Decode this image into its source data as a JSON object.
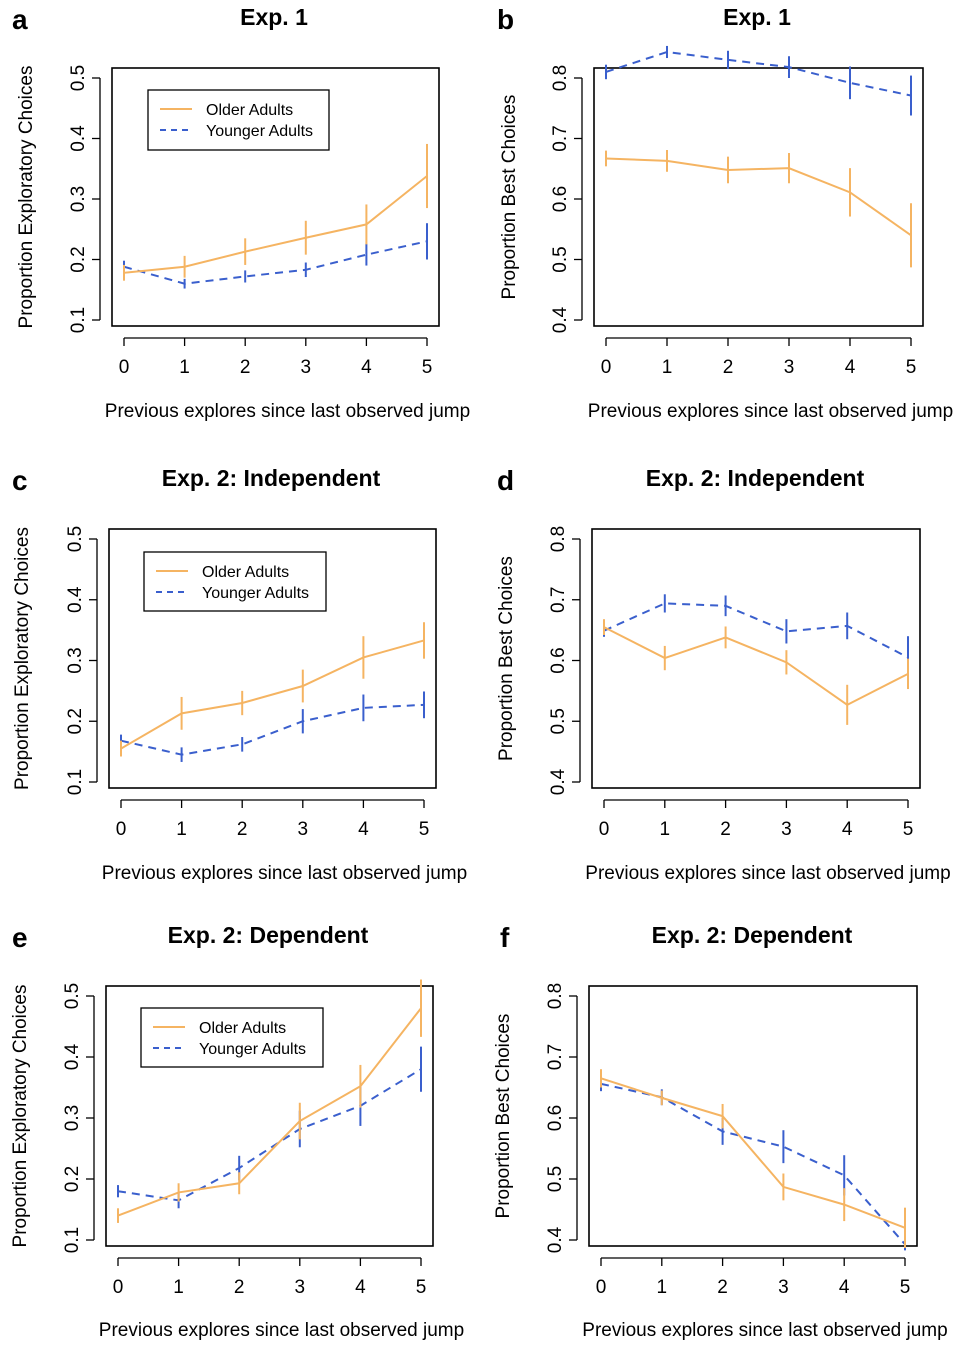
{
  "colors": {
    "older": "#f5b462",
    "younger": "#3a5fcd"
  },
  "chart_data": [
    {
      "id": "a",
      "letter": "a",
      "type": "line",
      "title": "Exp. 1",
      "xlabel": "Previous explores since last observed jump",
      "ylabel": "Proportion Exploratory Choices",
      "x": [
        0,
        1,
        2,
        3,
        4,
        5
      ],
      "ylim": [
        0.1,
        0.5
      ],
      "yticks": [
        "0.1",
        "0.2",
        "0.3",
        "0.4",
        "0.5"
      ],
      "legend": true,
      "legend_position": "top-left",
      "grid": false,
      "series": [
        {
          "name": "Older Adults",
          "style": "solid",
          "values": [
            0.178,
            0.188,
            0.213,
            0.236,
            0.258,
            0.338
          ],
          "errors": [
            0.013,
            0.018,
            0.022,
            0.028,
            0.033,
            0.053
          ]
        },
        {
          "name": "Younger Adults",
          "style": "dashed",
          "values": [
            0.188,
            0.16,
            0.172,
            0.183,
            0.208,
            0.23
          ],
          "errors": [
            0.01,
            0.008,
            0.01,
            0.012,
            0.018,
            0.03
          ]
        }
      ]
    },
    {
      "id": "b",
      "letter": "b",
      "type": "line",
      "title": "Exp. 1",
      "xlabel": "Previous explores since last observed jump",
      "ylabel": "Proportion Best Choices",
      "x": [
        0,
        1,
        2,
        3,
        4,
        5
      ],
      "ylim": [
        0.4,
        0.8
      ],
      "yticks": [
        "0.4",
        "0.5",
        "0.6",
        "0.7",
        "0.8"
      ],
      "legend": false,
      "grid": false,
      "series": [
        {
          "name": "Older Adults",
          "style": "solid",
          "values": [
            0.667,
            0.663,
            0.648,
            0.651,
            0.611,
            0.54
          ],
          "errors": [
            0.013,
            0.018,
            0.022,
            0.025,
            0.04,
            0.053
          ]
        },
        {
          "name": "Younger Adults",
          "style": "dashed",
          "values": [
            0.81,
            0.843,
            0.83,
            0.818,
            0.792,
            0.771
          ],
          "errors": [
            0.012,
            0.01,
            0.015,
            0.018,
            0.027,
            0.033
          ]
        }
      ]
    },
    {
      "id": "c",
      "letter": "c",
      "type": "line",
      "title": "Exp. 2: Independent",
      "xlabel": "Previous explores since last observed jump",
      "ylabel": "Proportion Exploratory Choices",
      "x": [
        0,
        1,
        2,
        3,
        4,
        5
      ],
      "ylim": [
        0.1,
        0.5
      ],
      "yticks": [
        "0.1",
        "0.2",
        "0.3",
        "0.4",
        "0.5"
      ],
      "legend": true,
      "legend_position": "top-left",
      "grid": false,
      "series": [
        {
          "name": "Older Adults",
          "style": "solid",
          "values": [
            0.155,
            0.213,
            0.23,
            0.258,
            0.305,
            0.333
          ],
          "errors": [
            0.013,
            0.027,
            0.02,
            0.027,
            0.035,
            0.03
          ]
        },
        {
          "name": "Younger Adults",
          "style": "dashed",
          "values": [
            0.168,
            0.145,
            0.162,
            0.2,
            0.222,
            0.227
          ],
          "errors": [
            0.01,
            0.012,
            0.012,
            0.02,
            0.022,
            0.022
          ]
        }
      ]
    },
    {
      "id": "d",
      "letter": "d",
      "type": "line",
      "title": "Exp. 2: Independent",
      "xlabel": "Previous explores since last observed jump",
      "ylabel": "Proportion Best Choices",
      "x": [
        0,
        1,
        2,
        3,
        4,
        5
      ],
      "ylim": [
        0.4,
        0.8
      ],
      "yticks": [
        "0.4",
        "0.5",
        "0.6",
        "0.7",
        "0.8"
      ],
      "legend": false,
      "grid": false,
      "series": [
        {
          "name": "Older Adults",
          "style": "solid",
          "values": [
            0.655,
            0.604,
            0.638,
            0.597,
            0.527,
            0.578
          ],
          "errors": [
            0.013,
            0.02,
            0.018,
            0.02,
            0.033,
            0.025
          ]
        },
        {
          "name": "Younger Adults",
          "style": "dashed",
          "values": [
            0.649,
            0.694,
            0.69,
            0.648,
            0.657,
            0.605
          ],
          "errors": [
            0.01,
            0.015,
            0.017,
            0.02,
            0.022,
            0.035
          ]
        }
      ]
    },
    {
      "id": "e",
      "letter": "e",
      "type": "line",
      "title": "Exp. 2: Dependent",
      "xlabel": "Previous explores since last observed jump",
      "ylabel": "Proportion Exploratory Choices",
      "x": [
        0,
        1,
        2,
        3,
        4,
        5
      ],
      "ylim": [
        0.1,
        0.5
      ],
      "yticks": [
        "0.1",
        "0.2",
        "0.3",
        "0.4",
        "0.5"
      ],
      "legend": true,
      "legend_position": "top-left",
      "grid": false,
      "series": [
        {
          "name": "Older Adults",
          "style": "solid",
          "values": [
            0.14,
            0.178,
            0.193,
            0.295,
            0.352,
            0.48
          ],
          "errors": [
            0.012,
            0.015,
            0.018,
            0.03,
            0.035,
            0.047
          ]
        },
        {
          "name": "Younger Adults",
          "style": "dashed",
          "values": [
            0.18,
            0.165,
            0.218,
            0.282,
            0.32,
            0.38
          ],
          "errors": [
            0.01,
            0.013,
            0.02,
            0.03,
            0.033,
            0.037
          ]
        }
      ]
    },
    {
      "id": "f",
      "letter": "f",
      "type": "line",
      "title": "Exp. 2: Dependent",
      "xlabel": "Previous explores since last observed jump",
      "ylabel": "Proportion Best Choices",
      "x": [
        0,
        1,
        2,
        3,
        4,
        5
      ],
      "ylim": [
        0.4,
        0.8
      ],
      "yticks": [
        "0.4",
        "0.5",
        "0.6",
        "0.7",
        "0.8"
      ],
      "legend": false,
      "grid": false,
      "series": [
        {
          "name": "Older Adults",
          "style": "solid",
          "values": [
            0.665,
            0.633,
            0.603,
            0.487,
            0.458,
            0.42
          ],
          "errors": [
            0.015,
            0.012,
            0.02,
            0.022,
            0.027,
            0.033
          ]
        },
        {
          "name": "Younger Adults",
          "style": "dashed",
          "values": [
            0.656,
            0.634,
            0.578,
            0.553,
            0.506,
            0.393
          ],
          "errors": [
            0.012,
            0.013,
            0.022,
            0.027,
            0.033,
            0.01
          ]
        }
      ]
    }
  ]
}
